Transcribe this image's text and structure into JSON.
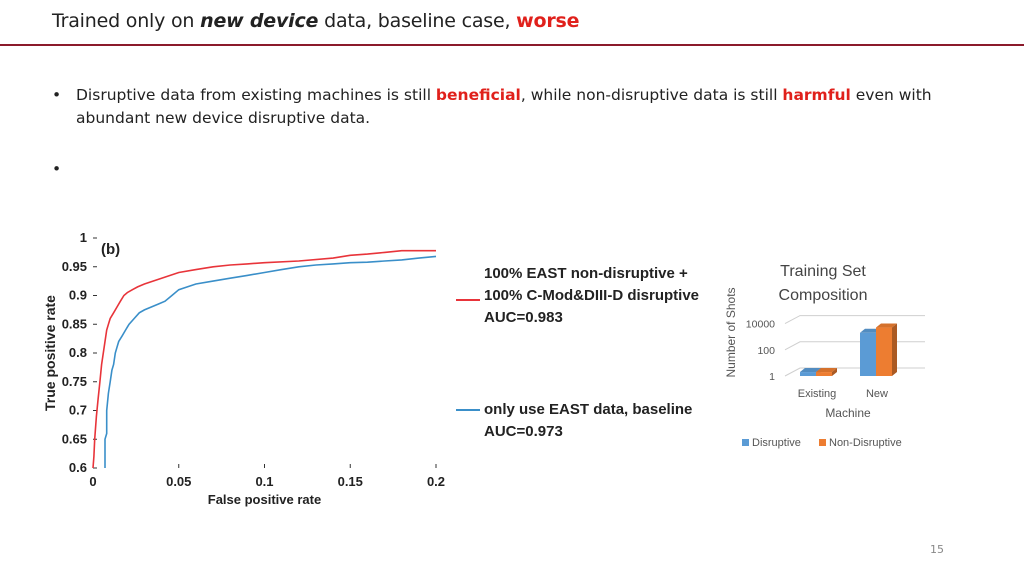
{
  "title": {
    "prefix": "Trained only on ",
    "bold_italic": "new device",
    "middle": " data, baseline case, ",
    "red": "worse"
  },
  "bullets": [
    {
      "before": "Disruptive data from existing machines is still ",
      "red1": "beneficial",
      "middle": ", while non-disruptive data is still ",
      "red2": "harmful",
      "after": " even with abundant new device disruptive data."
    },
    {
      "text": ""
    }
  ],
  "page_number": "15",
  "chart_data": [
    {
      "type": "line",
      "panel_label": "(b)",
      "xlabel": "False positive rate",
      "ylabel": "True positive rate",
      "xlim": [
        0,
        0.2
      ],
      "ylim": [
        0.6,
        1
      ],
      "xticks": [
        "0",
        "0.05",
        "0.1",
        "0.15",
        "0.2"
      ],
      "yticks": [
        "0.6",
        "0.65",
        "0.7",
        "0.75",
        "0.8",
        "0.85",
        "0.9",
        "0.95",
        "1"
      ],
      "legend_placement": "right",
      "series": [
        {
          "name": "100% EAST non-disruptive + 100% C-Mod&DIII-D disruptive",
          "legend_lines": [
            "100% EAST non-disruptive +",
            "100% C-Mod&DIII-D disruptive",
            "AUC=0.983"
          ],
          "color": "#e8343a",
          "x": [
            0,
            0.0005,
            0.001,
            0.002,
            0.003,
            0.004,
            0.005,
            0.006,
            0.007,
            0.008,
            0.009,
            0.01,
            0.012,
            0.014,
            0.016,
            0.018,
            0.02,
            0.023,
            0.026,
            0.03,
            0.035,
            0.04,
            0.045,
            0.05,
            0.06,
            0.07,
            0.08,
            0.09,
            0.1,
            0.12,
            0.14,
            0.15,
            0.16,
            0.17,
            0.18,
            0.19,
            0.2
          ],
          "y": [
            0.6,
            0.62,
            0.65,
            0.69,
            0.72,
            0.75,
            0.78,
            0.8,
            0.82,
            0.84,
            0.85,
            0.86,
            0.87,
            0.88,
            0.89,
            0.9,
            0.905,
            0.91,
            0.915,
            0.92,
            0.925,
            0.93,
            0.935,
            0.94,
            0.945,
            0.95,
            0.953,
            0.955,
            0.957,
            0.96,
            0.965,
            0.97,
            0.972,
            0.975,
            0.978,
            0.978,
            0.978
          ]
        },
        {
          "name": "only use EAST data, baseline",
          "legend_lines": [
            "only use EAST data, baseline",
            "AUC=0.973"
          ],
          "color": "#3a8fc9",
          "x": [
            0.007,
            0.007,
            0.008,
            0.008,
            0.009,
            0.01,
            0.011,
            0.012,
            0.013,
            0.014,
            0.015,
            0.017,
            0.019,
            0.021,
            0.024,
            0.027,
            0.03,
            0.034,
            0.038,
            0.042,
            0.046,
            0.05,
            0.055,
            0.06,
            0.07,
            0.08,
            0.09,
            0.1,
            0.11,
            0.12,
            0.13,
            0.14,
            0.15,
            0.16,
            0.17,
            0.18,
            0.19,
            0.2
          ],
          "y": [
            0.6,
            0.65,
            0.66,
            0.7,
            0.73,
            0.75,
            0.77,
            0.78,
            0.8,
            0.81,
            0.82,
            0.83,
            0.84,
            0.85,
            0.86,
            0.87,
            0.875,
            0.88,
            0.885,
            0.89,
            0.9,
            0.91,
            0.915,
            0.92,
            0.925,
            0.93,
            0.935,
            0.94,
            0.945,
            0.95,
            0.953,
            0.955,
            0.957,
            0.958,
            0.96,
            0.962,
            0.965,
            0.968
          ]
        }
      ]
    },
    {
      "type": "bar",
      "title": [
        "Training Set",
        "Composition"
      ],
      "xlabel": "Machine",
      "ylabel": "Number of Shots",
      "y_scale": "log",
      "yticks": [
        "1",
        "100",
        "10000"
      ],
      "categories": [
        "Existing",
        "New"
      ],
      "legend_placement": "bottom",
      "series": [
        {
          "name": "Disruptive",
          "color": "#5b9bd5",
          "values": [
            2,
            2000
          ]
        },
        {
          "name": "Non-Disruptive",
          "color": "#ed7d31",
          "values": [
            2,
            5000
          ]
        }
      ]
    }
  ]
}
